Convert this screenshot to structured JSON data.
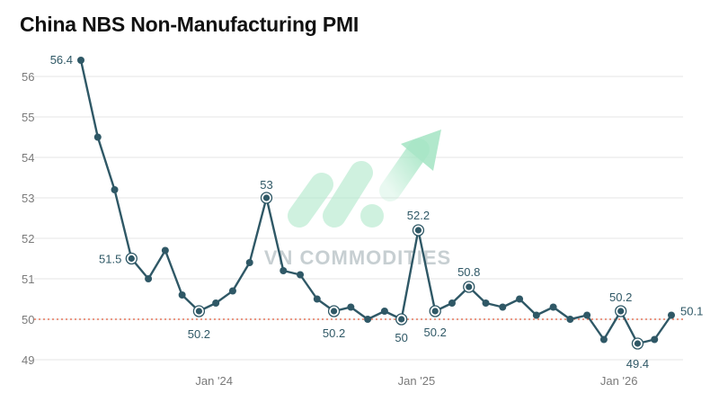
{
  "chart_data": {
    "type": "line",
    "title": "China NBS Non-Manufacturing PMI",
    "xlabel": "",
    "ylabel": "",
    "ylim": [
      49,
      56.5
    ],
    "yticks": [
      49,
      50,
      51,
      52,
      53,
      54,
      55,
      56
    ],
    "x_tick_labels": [
      "Jan '24",
      "Jan '25",
      "Jan '26"
    ],
    "reference_line": {
      "value": 50,
      "style": "dotted",
      "color": "#e05a3a"
    },
    "grid": true,
    "series": [
      {
        "color": "#2f5866",
        "values": [
          56.4,
          54.5,
          53.2,
          51.5,
          51.0,
          51.7,
          50.6,
          50.2,
          50.4,
          50.7,
          51.4,
          53.0,
          51.2,
          51.1,
          50.5,
          50.2,
          50.3,
          50.0,
          50.2,
          50.0,
          52.2,
          50.2,
          50.4,
          50.8,
          50.4,
          50.3,
          50.5,
          50.1,
          50.3,
          50.0,
          50.1,
          49.5,
          50.2,
          49.4,
          49.5,
          50.1
        ],
        "labels": [
          {
            "index": 0,
            "text": "56.4"
          },
          {
            "index": 3,
            "text": "51.5"
          },
          {
            "index": 7,
            "text": "50.2"
          },
          {
            "index": 11,
            "text": "53"
          },
          {
            "index": 15,
            "text": "50.2"
          },
          {
            "index": 19,
            "text": "50"
          },
          {
            "index": 20,
            "text": "52.2"
          },
          {
            "index": 21,
            "text": "50.2"
          },
          {
            "index": 23,
            "text": "50.8"
          },
          {
            "index": 32,
            "text": "50.2"
          },
          {
            "index": 33,
            "text": "49.4"
          },
          {
            "index": 35,
            "text": "50.1"
          }
        ]
      }
    ]
  },
  "watermark": {
    "text": "VN COMMODITIES",
    "color": "#c7cfd2",
    "accent": "#a8e6c6"
  }
}
